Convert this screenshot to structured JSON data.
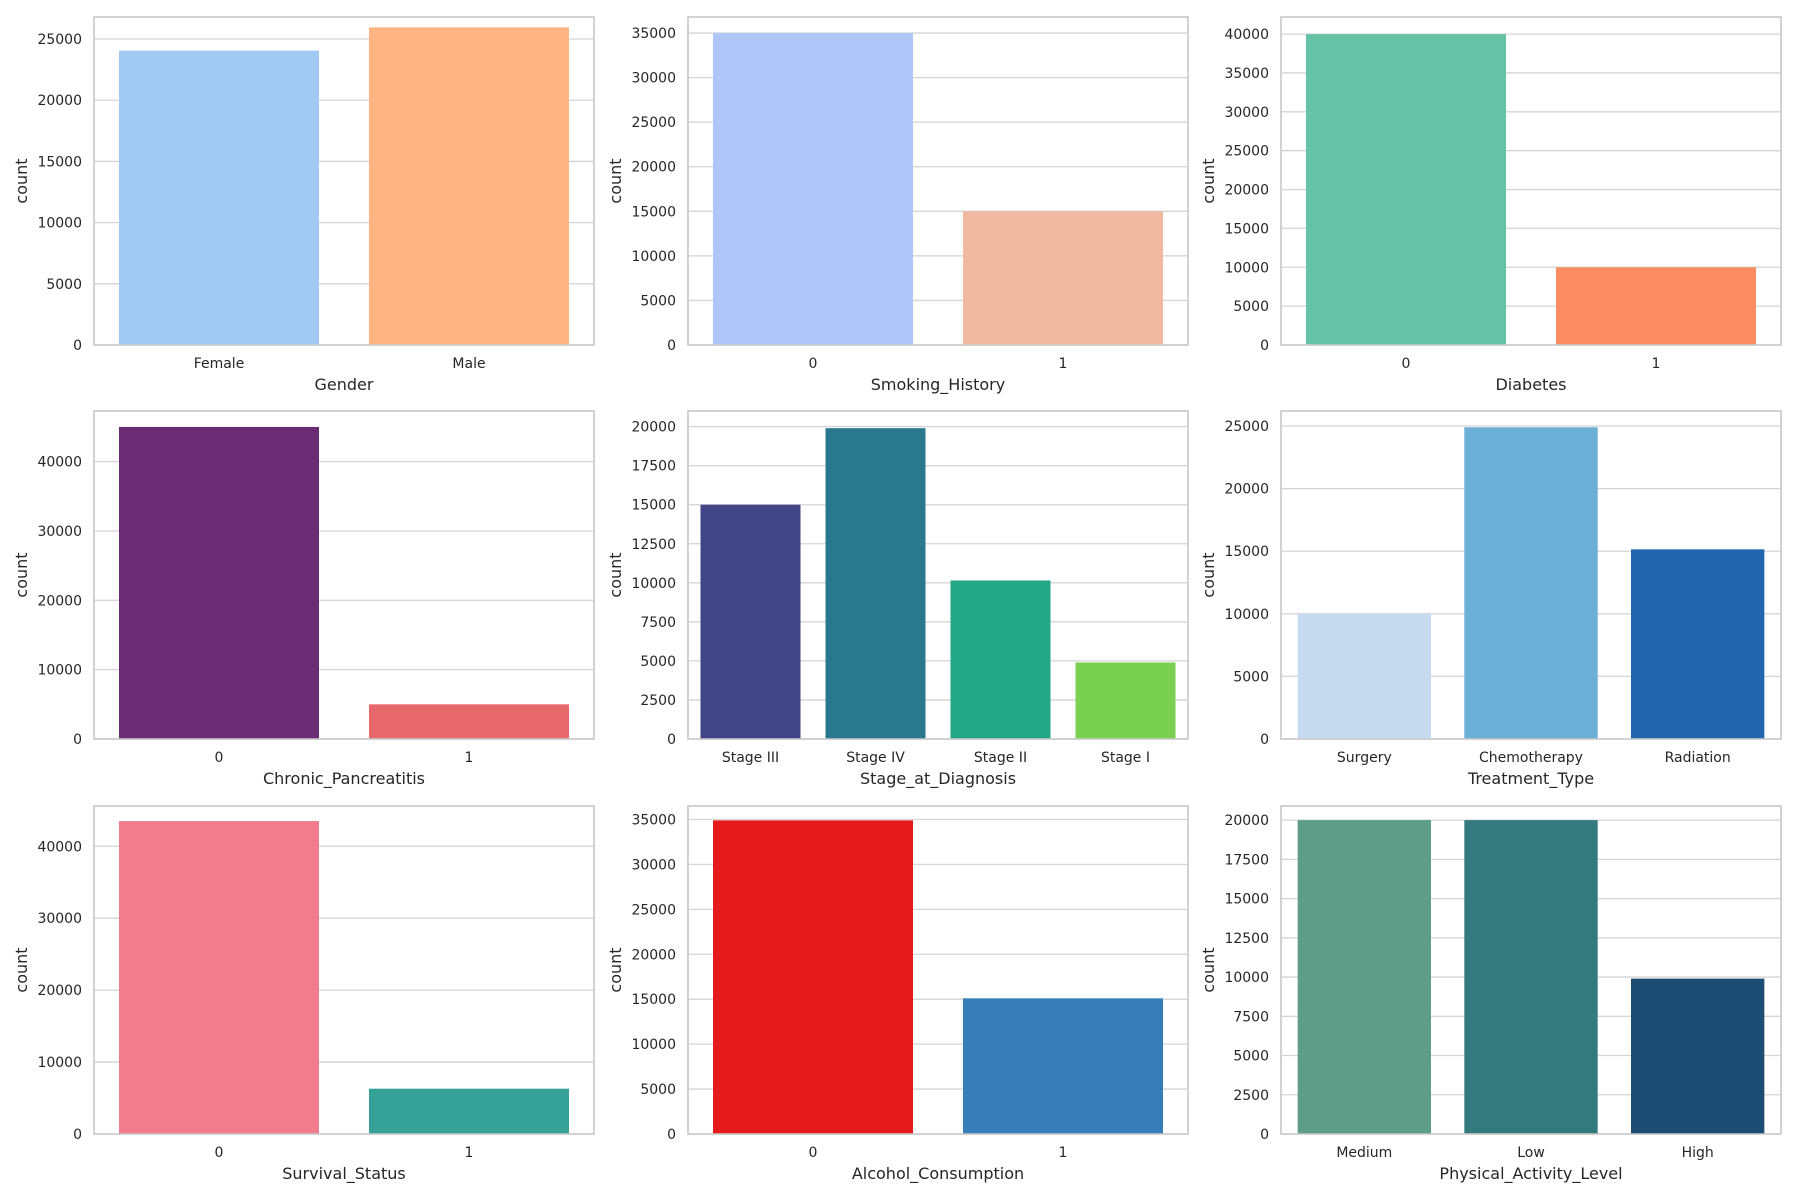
{
  "chart_data": [
    {
      "type": "bar",
      "xlabel": "Gender",
      "ylabel": "count",
      "yticks": [
        0,
        5000,
        10000,
        15000,
        20000,
        25000
      ],
      "ylim": [
        0,
        26800
      ],
      "categories": [
        "Female",
        "Male"
      ],
      "values": [
        24050,
        25950
      ],
      "colors": [
        "#a1c9f4",
        "#ffb482"
      ],
      "grid": true
    },
    {
      "type": "bar",
      "xlabel": "Smoking_History",
      "ylabel": "count",
      "yticks": [
        0,
        5000,
        10000,
        15000,
        20000,
        25000,
        30000,
        35000
      ],
      "ylim": [
        0,
        36800
      ],
      "categories": [
        "0",
        "1"
      ],
      "values": [
        35000,
        15000
      ],
      "colors": [
        "#aec7f8",
        "#f0b9a0"
      ],
      "grid": true
    },
    {
      "type": "bar",
      "xlabel": "Diabetes",
      "ylabel": "count",
      "yticks": [
        0,
        5000,
        10000,
        15000,
        20000,
        25000,
        30000,
        35000,
        40000
      ],
      "ylim": [
        0,
        42200
      ],
      "categories": [
        "0",
        "1"
      ],
      "values": [
        40000,
        10000
      ],
      "colors": [
        "#66c2a5",
        "#fc8d62"
      ],
      "grid": true
    },
    {
      "type": "bar",
      "xlabel": "Chronic_Pancreatitis",
      "ylabel": "count",
      "yticks": [
        0,
        10000,
        20000,
        30000,
        40000
      ],
      "ylim": [
        0,
        47300
      ],
      "categories": [
        "0",
        "1"
      ],
      "values": [
        45000,
        5000
      ],
      "colors": [
        "#6a2c75",
        "#e8696b"
      ],
      "grid": true
    },
    {
      "type": "bar",
      "xlabel": "Stage_at_Diagnosis",
      "ylabel": "count",
      "yticks": [
        0,
        2500,
        5000,
        7500,
        10000,
        12500,
        15000,
        17500,
        20000
      ],
      "ylim": [
        0,
        21000
      ],
      "categories": [
        "Stage III",
        "Stage IV",
        "Stage II",
        "Stage I"
      ],
      "values": [
        15000,
        19900,
        10150,
        4900
      ],
      "colors": [
        "#414487",
        "#2a788e",
        "#22a884",
        "#7ad151"
      ],
      "grid": true
    },
    {
      "type": "bar",
      "xlabel": "Treatment_Type",
      "ylabel": "count",
      "yticks": [
        0,
        5000,
        10000,
        15000,
        20000,
        25000
      ],
      "ylim": [
        0,
        26200
      ],
      "categories": [
        "Surgery",
        "Chemotherapy",
        "Radiation"
      ],
      "values": [
        10000,
        24900,
        15150
      ],
      "colors": [
        "#c6dbef",
        "#6baed6",
        "#2166ac"
      ],
      "grid": true
    },
    {
      "type": "bar",
      "xlabel": "Survival_Status",
      "ylabel": "count",
      "yticks": [
        0,
        10000,
        20000,
        30000,
        40000
      ],
      "ylim": [
        0,
        45600
      ],
      "categories": [
        "0",
        "1"
      ],
      "values": [
        43500,
        6300
      ],
      "colors": [
        "#f37b8e",
        "#36a297"
      ],
      "grid": true
    },
    {
      "type": "bar",
      "xlabel": "Alcohol_Consumption",
      "ylabel": "count",
      "yticks": [
        0,
        5000,
        10000,
        15000,
        20000,
        25000,
        30000,
        35000
      ],
      "ylim": [
        0,
        36500
      ],
      "categories": [
        "0",
        "1"
      ],
      "values": [
        34900,
        15100
      ],
      "colors": [
        "#e41a1c",
        "#377eb8"
      ],
      "grid": true
    },
    {
      "type": "bar",
      "xlabel": "Physical_Activity_Level",
      "ylabel": "count",
      "yticks": [
        0,
        2500,
        5000,
        7500,
        10000,
        12500,
        15000,
        17500,
        20000
      ],
      "ylim": [
        0,
        20900
      ],
      "categories": [
        "Medium",
        "Low",
        "High"
      ],
      "values": [
        20000,
        20000,
        9900
      ],
      "colors": [
        "#5e9e88",
        "#327a7e",
        "#1d4d73"
      ],
      "grid": true
    }
  ]
}
